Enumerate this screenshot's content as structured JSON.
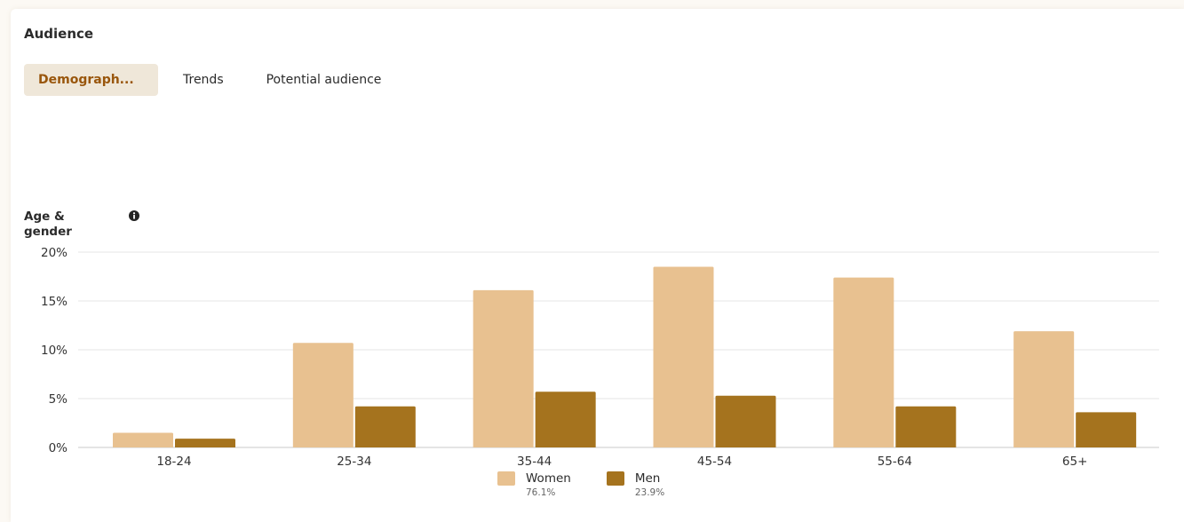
{
  "audience": {
    "title": "Audience",
    "tabs": [
      {
        "label": "Demograph...",
        "active": true
      },
      {
        "label": "Trends",
        "active": false
      },
      {
        "label": "Potential audience",
        "active": false
      }
    ]
  },
  "age_gender": {
    "title": "Age & gender",
    "info_icon": "info-circle-icon"
  },
  "colors": {
    "women": "#e8c190",
    "men": "#a5731e",
    "active_tab_bg": "#efe7d9",
    "active_tab_text": "#99560c"
  },
  "chart_data": {
    "type": "bar",
    "categories": [
      "18-24",
      "25-34",
      "35-44",
      "45-54",
      "55-64",
      "65+"
    ],
    "series": [
      {
        "name": "Women",
        "share": "76.1%",
        "values": [
          1.5,
          10.7,
          16.1,
          18.5,
          17.4,
          11.9
        ]
      },
      {
        "name": "Men",
        "share": "23.9%",
        "values": [
          0.9,
          4.2,
          5.7,
          5.3,
          4.2,
          3.6
        ]
      }
    ],
    "yticks": [
      "0%",
      "5%",
      "10%",
      "15%",
      "20%"
    ],
    "ylim": [
      0,
      20
    ],
    "grid": true,
    "legend": "bottom-center"
  }
}
